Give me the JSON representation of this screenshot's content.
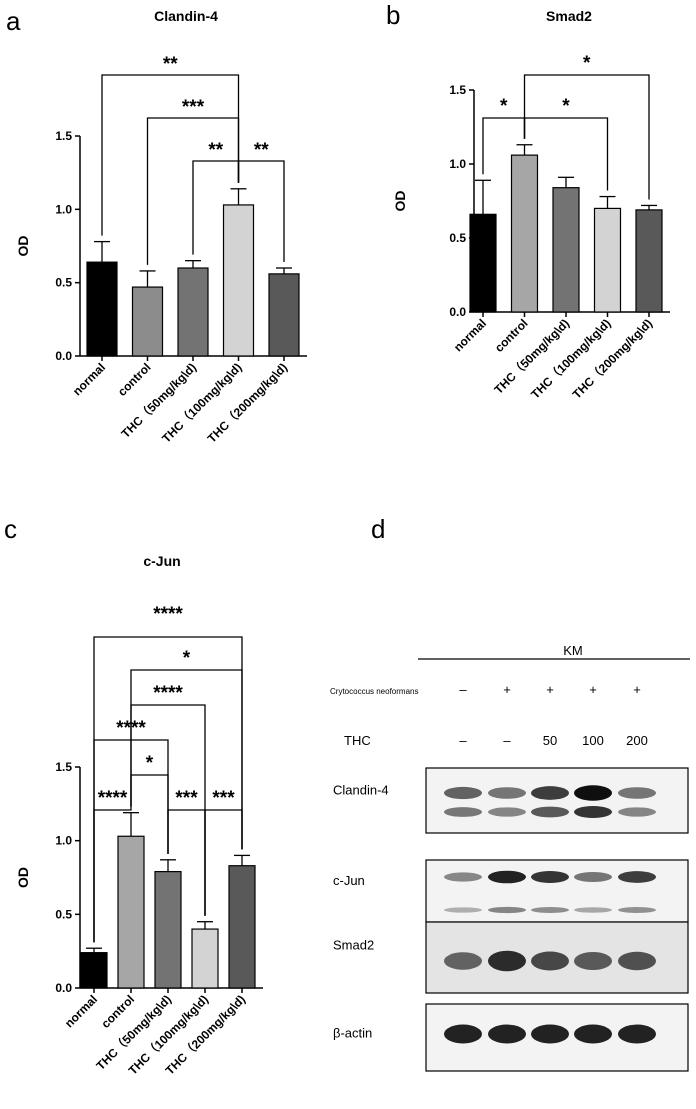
{
  "panels": {
    "a": "a",
    "b": "b",
    "c": "c",
    "d": "d"
  },
  "chart_data": [
    {
      "type": "bar",
      "panel": "a",
      "title": "Clandin-4",
      "ylabel": "OD",
      "ylim": [
        0,
        1.5
      ],
      "yticks": [
        "0.0",
        "0.5",
        "1.0",
        "1.5"
      ],
      "categories": [
        "normal",
        "control",
        "THC（50mg/kg\\d)",
        "THC（100mg/kg\\d)",
        "THC（200mg/kg\\d)"
      ],
      "values": [
        0.64,
        0.47,
        0.6,
        1.03,
        0.56
      ],
      "errors": [
        0.14,
        0.11,
        0.05,
        0.11,
        0.04
      ],
      "colors": [
        "#000000",
        "#8c8c8c",
        "#737373",
        "#d3d3d3",
        "#595959"
      ],
      "comparisons": [
        {
          "from": 0,
          "to": 3,
          "label": "**"
        },
        {
          "from": 1,
          "to": 3,
          "label": "***"
        },
        {
          "from": 2,
          "to": 3,
          "label": "**"
        },
        {
          "from": 3,
          "to": 4,
          "label": "**"
        }
      ]
    },
    {
      "type": "bar",
      "panel": "b",
      "title": "Smad2",
      "ylabel": "OD",
      "ylim": [
        0,
        1.5
      ],
      "yticks": [
        "0.0",
        "0.5",
        "1.0",
        "1.5"
      ],
      "categories": [
        "normal",
        "control",
        "THC（50mg/kg\\d)",
        "THC（100mg/kg\\d)",
        "THC（200mg/kg\\d)"
      ],
      "values": [
        0.66,
        1.06,
        0.84,
        0.7,
        0.69
      ],
      "errors": [
        0.23,
        0.07,
        0.07,
        0.08,
        0.03
      ],
      "colors": [
        "#000000",
        "#a6a6a6",
        "#737373",
        "#d3d3d3",
        "#595959"
      ],
      "comparisons": [
        {
          "from": 0,
          "to": 1,
          "label": "*"
        },
        {
          "from": 1,
          "to": 3,
          "label": "*"
        },
        {
          "from": 1,
          "to": 4,
          "label": "*"
        }
      ]
    },
    {
      "type": "bar",
      "panel": "c",
      "title": "c-Jun",
      "ylabel": "OD",
      "ylim": [
        0,
        1.5
      ],
      "yticks": [
        "0.0",
        "0.5",
        "1.0",
        "1.5"
      ],
      "categories": [
        "normal",
        "control",
        "THC（50mg/kg\\d)",
        "THC（100mg/kg\\d)",
        "THC（200mg/kg\\d)"
      ],
      "values": [
        0.24,
        1.03,
        0.79,
        0.4,
        0.83
      ],
      "errors": [
        0.03,
        0.16,
        0.08,
        0.05,
        0.07
      ],
      "colors": [
        "#000000",
        "#a6a6a6",
        "#737373",
        "#d3d3d3",
        "#595959"
      ],
      "comparisons": [
        {
          "from": 0,
          "to": 1,
          "label": "****"
        },
        {
          "from": 2,
          "to": 3,
          "label": "***"
        },
        {
          "from": 3,
          "to": 4,
          "label": "***"
        },
        {
          "from": 1,
          "to": 2,
          "label": "*"
        },
        {
          "from": 0,
          "to": 2,
          "label": "****"
        },
        {
          "from": 1,
          "to": 3,
          "label": "****"
        },
        {
          "from": 1,
          "to": 4,
          "label": "*"
        },
        {
          "from": 0,
          "to": 4,
          "label": "****"
        }
      ]
    }
  ],
  "western_blot": {
    "group_label": "KM",
    "row1_label": "Crytococcus neoformans",
    "row1_values": [
      "–",
      "+",
      "+",
      "+",
      "+"
    ],
    "row2_label": "THC",
    "row2_values": [
      "–",
      "–",
      "50",
      "100",
      "200"
    ],
    "blots": [
      {
        "label": "Clandin-4",
        "intensity": [
          0.55,
          0.45,
          0.75,
          1.0,
          0.45
        ]
      },
      {
        "label": "c-Jun",
        "intensity": [
          0.35,
          0.9,
          0.8,
          0.45,
          0.75
        ]
      },
      {
        "label": "Smad2",
        "intensity": [
          0.55,
          0.85,
          0.7,
          0.6,
          0.65
        ]
      },
      {
        "label": "β-actin",
        "intensity": [
          0.9,
          0.9,
          0.9,
          0.9,
          0.9
        ]
      }
    ]
  }
}
